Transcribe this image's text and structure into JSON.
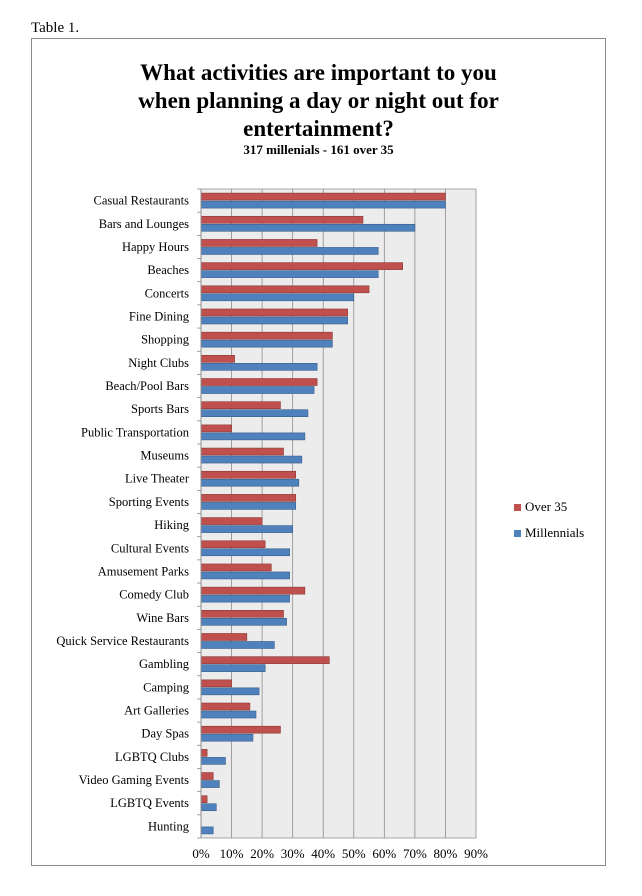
{
  "table_label": "Table 1.",
  "colors": {
    "over35": "#c0504d",
    "millennials": "#4f81bd",
    "plot_bg": "#ececec",
    "grid": "#8c8c8c"
  },
  "chart_data": {
    "type": "bar",
    "orientation": "horizontal",
    "title": "What activities are important to you\nwhen planning a day or night out for\nentertainment?",
    "subtitle": "317 millenials - 161 over 35",
    "categories": [
      "Casual Restaurants",
      "Bars and Lounges",
      "Happy Hours",
      "Beaches",
      "Concerts",
      "Fine Dining",
      "Shopping",
      "Night Clubs",
      "Beach/Pool Bars",
      "Sports Bars",
      "Public Transportation",
      "Museums",
      "Live Theater",
      "Sporting Events",
      "Hiking",
      "Cultural Events",
      "Amusement Parks",
      "Comedy Club",
      "Wine Bars",
      "Quick Service Restaurants",
      "Gambling",
      "Camping",
      "Art Galleries",
      "Day Spas",
      "LGBTQ Clubs",
      "Video Gaming Events",
      "LGBTQ Events",
      "Hunting"
    ],
    "series": [
      {
        "name": "Over 35",
        "values": [
          80,
          53,
          38,
          66,
          55,
          48,
          43,
          11,
          38,
          26,
          10,
          27,
          31,
          31,
          20,
          21,
          23,
          34,
          27,
          15,
          42,
          10,
          16,
          26,
          2,
          4,
          2,
          0
        ]
      },
      {
        "name": "Millennials",
        "values": [
          80,
          70,
          58,
          58,
          50,
          48,
          43,
          38,
          37,
          35,
          34,
          33,
          32,
          31,
          30,
          29,
          29,
          29,
          28,
          24,
          21,
          19,
          18,
          17,
          8,
          6,
          5,
          4
        ]
      }
    ],
    "xlim": [
      0,
      90
    ],
    "xticks": [
      "0%",
      "10%",
      "20%",
      "30%",
      "40%",
      "50%",
      "60%",
      "70%",
      "80%",
      "90%"
    ],
    "legend": [
      "Over 35",
      "Millennials"
    ],
    "legend_position": "right",
    "grid": true
  }
}
